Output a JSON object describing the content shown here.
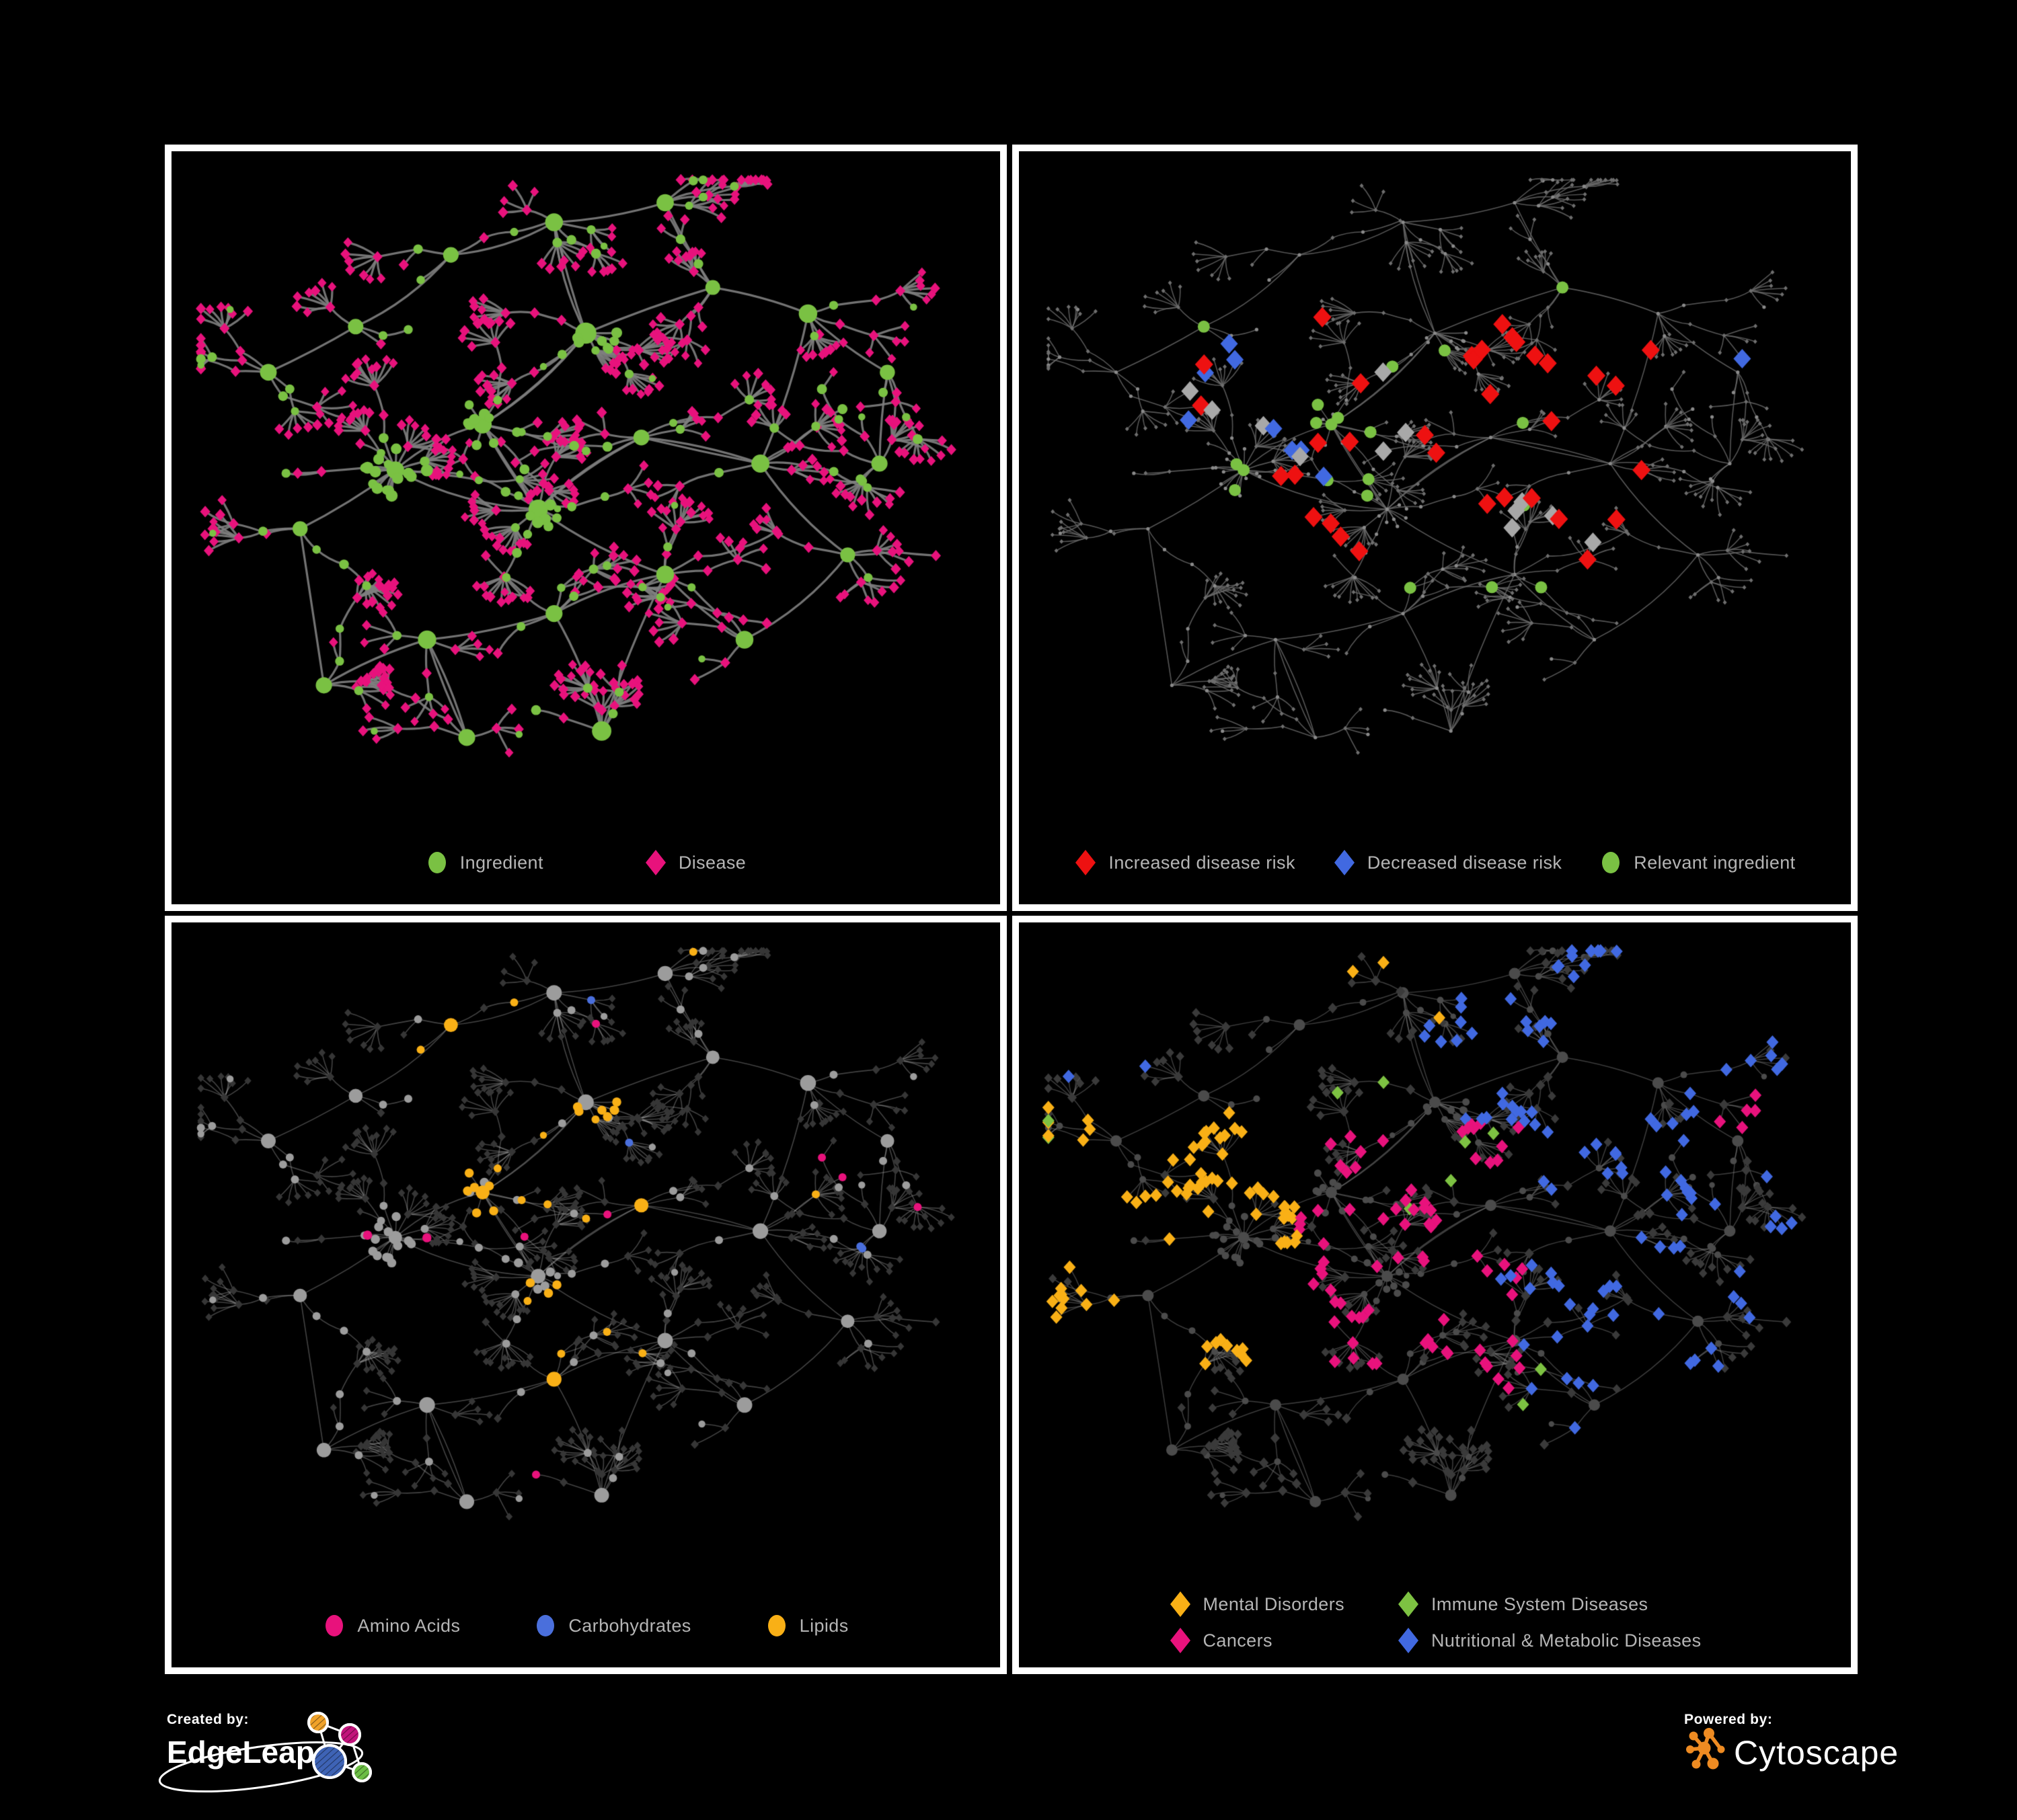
{
  "panels": [
    {
      "id": "ingredient-disease",
      "legend": [
        {
          "label": "Ingredient",
          "shape": "circle",
          "color": "#7AC143"
        },
        {
          "label": "Disease",
          "shape": "diamond",
          "color": "#E8127C"
        }
      ]
    },
    {
      "id": "disease-risk",
      "legend": [
        {
          "label": "Increased disease risk",
          "shape": "diamond",
          "color": "#EE1111"
        },
        {
          "label": "Decreased disease risk",
          "shape": "diamond",
          "color": "#4169E1"
        },
        {
          "label": "Relevant ingredient",
          "shape": "circle",
          "color": "#7AC143"
        }
      ]
    },
    {
      "id": "nutrient-classes",
      "legend": [
        {
          "label": "Amino Acids",
          "shape": "circle",
          "color": "#E8127C"
        },
        {
          "label": "Carbohydrates",
          "shape": "circle",
          "color": "#4A6FDC"
        },
        {
          "label": "Lipids",
          "shape": "circle",
          "color": "#F9B016"
        }
      ]
    },
    {
      "id": "disease-categories",
      "legend": [
        {
          "label": "Mental Disorders",
          "shape": "diamond",
          "color": "#F9B016"
        },
        {
          "label": "Immune System Diseases",
          "shape": "diamond",
          "color": "#7DC242"
        },
        {
          "label": "Cancers",
          "shape": "diamond",
          "color": "#E8127C"
        },
        {
          "label": "Nutritional & Metabolic Diseases",
          "shape": "diamond",
          "color": "#4169E1"
        }
      ]
    }
  ],
  "footer": {
    "created_by": "Created by:",
    "brand": "EdgeLeap",
    "powered_by": "Powered by:",
    "engine": "Cytoscape"
  },
  "network": {
    "seed": 20,
    "node_types": {
      "circle": "ingredient",
      "diamond": "disease"
    },
    "styles": {
      "tl": {
        "edge": "rgba(128,128,128,0.9)",
        "edgeWidth": 3.2,
        "ingredient": "#7AC143",
        "disease": "#E8127C"
      },
      "tr": {
        "edge": "rgba(108,108,108,0.8)",
        "edgeWidth": 1.6,
        "base_circle": "#8A8A8A",
        "base_diamond": "#6E6E6E",
        "increased": "#EE1111",
        "decreased": "#4169E1",
        "neutral": "#A8A8A8",
        "relevant": "#7AC143"
      },
      "bl": {
        "edge": "rgba(175,175,175,0.38)",
        "edgeWidth": 1.6,
        "base_circle": "#9C9C9C",
        "base_diamond": "#363636",
        "amino": "#E8127C",
        "carb": "#4A6FDC",
        "lipid": "#F9B016"
      },
      "br": {
        "edge": "rgba(135,135,135,0.45)",
        "edgeWidth": 1.5,
        "base_circle": "#4B4B4B",
        "base_diamond": "#3A3A3A",
        "mental": "#F9B016",
        "immune": "#7DC242",
        "cancer": "#E8127C",
        "nutritional": "#4169E1"
      }
    },
    "logo_colors": {
      "edgeleap_orange": "#F0A229",
      "edgeleap_magenta": "#C2137B",
      "edgeleap_blue": "#3E63B5",
      "edgeleap_green": "#6CBE45",
      "cytoscape_orange": "#EE8B22"
    }
  }
}
